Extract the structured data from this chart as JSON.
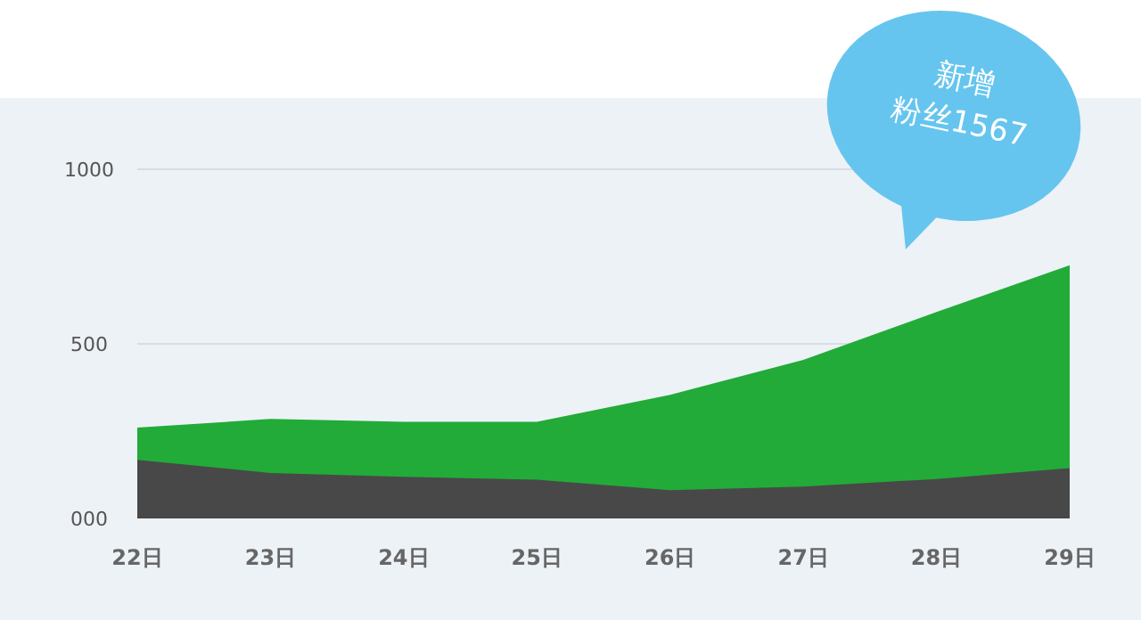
{
  "chart_data": {
    "type": "area",
    "categories": [
      "22日",
      "23日",
      "24日",
      "25日",
      "26日",
      "27日",
      "28日",
      "29日"
    ],
    "series": [
      {
        "color": "#22ab38",
        "values": [
          260,
          285,
          277,
          277,
          354,
          454,
          591,
          725
        ]
      },
      {
        "color": "#484848",
        "values": [
          168,
          130,
          119,
          111,
          81,
          91,
          113,
          144
        ]
      }
    ],
    "ylim": [
      0,
      1000
    ],
    "yticks": [
      {
        "value": 0,
        "label": "000"
      },
      500,
      1000
    ],
    "grid": "y",
    "annotations": [
      "新增",
      "粉丝1567"
    ]
  }
}
